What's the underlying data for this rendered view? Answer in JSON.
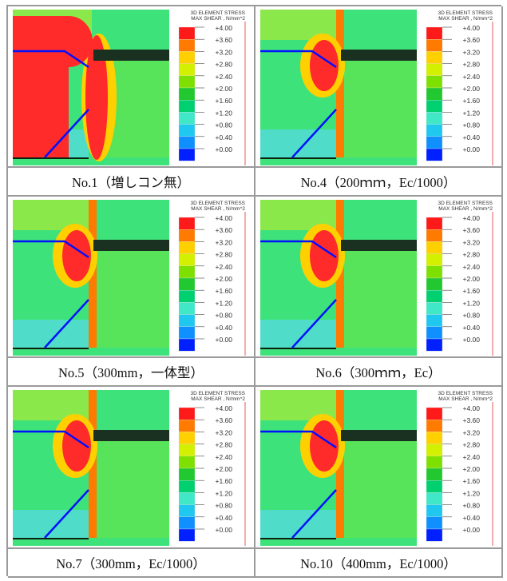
{
  "legend": {
    "title_line1": "3D ELEMENT STRESS",
    "title_line2": "MAX SHEAR , N/mm^2",
    "ticks": [
      "+4.00",
      "+3.60",
      "+3.20",
      "+2.80",
      "+2.40",
      "+2.00",
      "+1.60",
      "+1.20",
      "+0.80",
      "+0.40",
      "+0.00"
    ],
    "colors": [
      "#ff1a1a",
      "#ff7a00",
      "#ffd000",
      "#d2f000",
      "#7ee000",
      "#22c830",
      "#00d070",
      "#40e8c8",
      "#20c8f0",
      "#1090ff",
      "#0020ff"
    ]
  },
  "panels": [
    {
      "caption": "No.1（増しコン無）"
    },
    {
      "caption": "No.4（200ｍｍ，Ec/1000）"
    },
    {
      "caption": "No.5（300mm，一体型）"
    },
    {
      "caption": "No.6（300ｍｍ，Ec）"
    },
    {
      "caption": "No.7（300mm，Ec/1000）"
    },
    {
      "caption": "No.10（400mm，Ec/1000）"
    }
  ]
}
